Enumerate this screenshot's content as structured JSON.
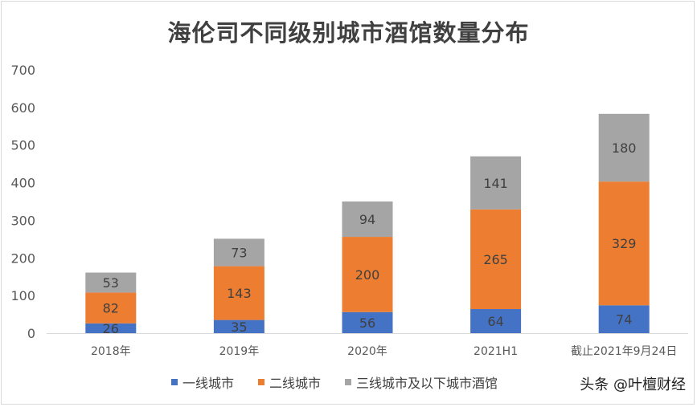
{
  "chart_data": {
    "type": "bar",
    "stacked": true,
    "title": "海伦司不同级别城市酒馆数量分布",
    "categories": [
      "2018年",
      "2019年",
      "2020年",
      "2021H1",
      "截止2021年9月24日"
    ],
    "series": [
      {
        "name": "一线城市",
        "color": "#4472c4",
        "values": [
          26,
          35,
          56,
          64,
          74
        ]
      },
      {
        "name": "二线城市",
        "color": "#ed7d31",
        "values": [
          82,
          143,
          200,
          265,
          329
        ]
      },
      {
        "name": "三线城市及以下城市酒馆",
        "color": "#a5a5a5",
        "values": [
          53,
          73,
          94,
          141,
          180
        ]
      }
    ],
    "ylim": [
      0,
      700
    ],
    "yticks": [
      0,
      100,
      200,
      300,
      400,
      500,
      600,
      700
    ],
    "xlabel": "",
    "ylabel": "",
    "legend_position": "bottom",
    "grid": false
  },
  "watermark": "头条 @叶檀财经"
}
